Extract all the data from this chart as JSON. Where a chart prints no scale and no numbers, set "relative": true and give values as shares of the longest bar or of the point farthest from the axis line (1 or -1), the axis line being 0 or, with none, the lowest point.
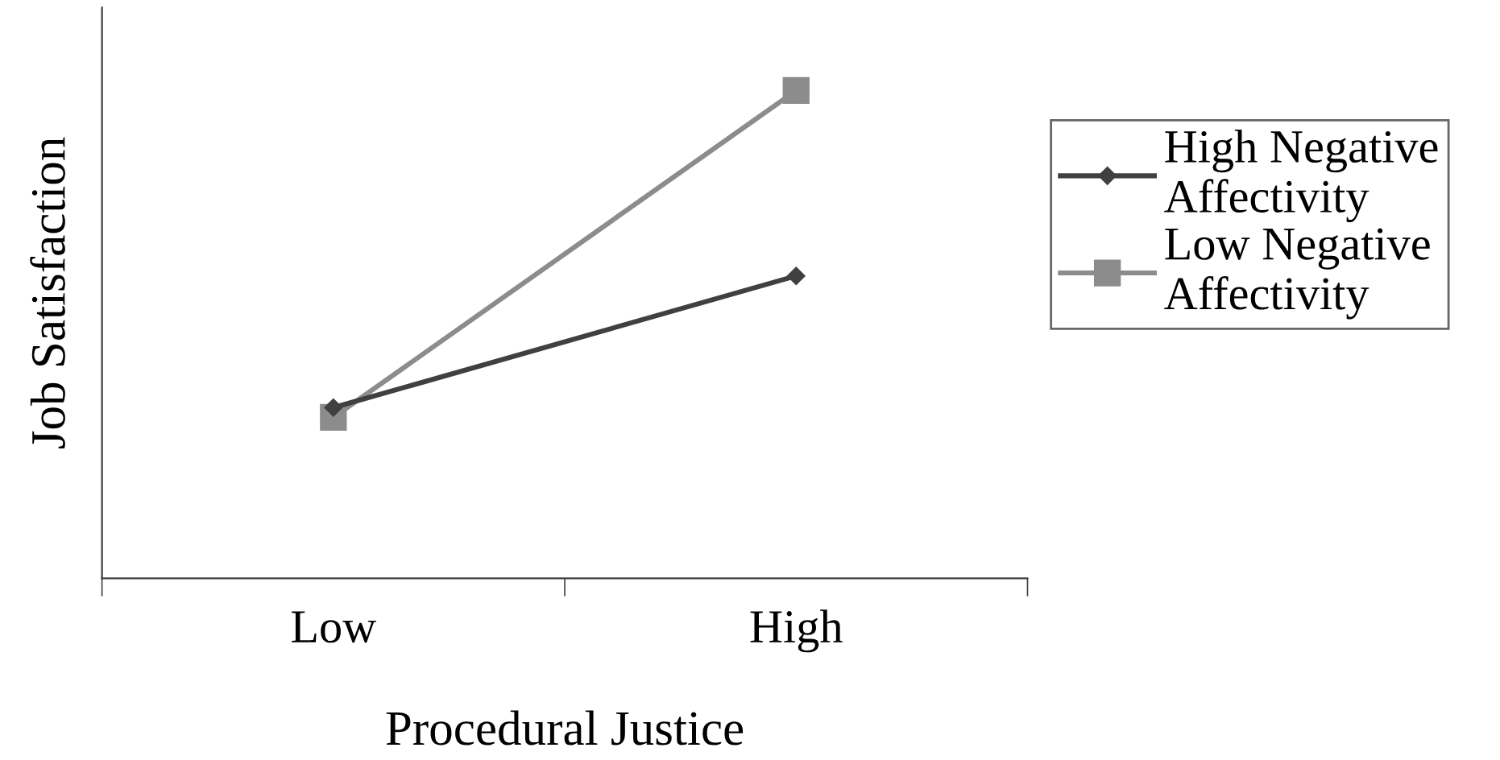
{
  "chart_data": {
    "type": "line",
    "relative": true,
    "xlabel": "Procedural Justice",
    "ylabel": "Job Satisfaction",
    "categories": [
      "Low",
      "High"
    ],
    "series": [
      {
        "name": "High Negative Affectivity",
        "color": "#404040",
        "marker": "diamond",
        "values": [
          0.35,
          0.62
        ]
      },
      {
        "name": "Low Negative Affectivity",
        "color": "#8c8c8c",
        "marker": "square",
        "values": [
          0.33,
          1
        ]
      }
    ],
    "legend": "right",
    "grid": false,
    "line_style": "solid"
  }
}
